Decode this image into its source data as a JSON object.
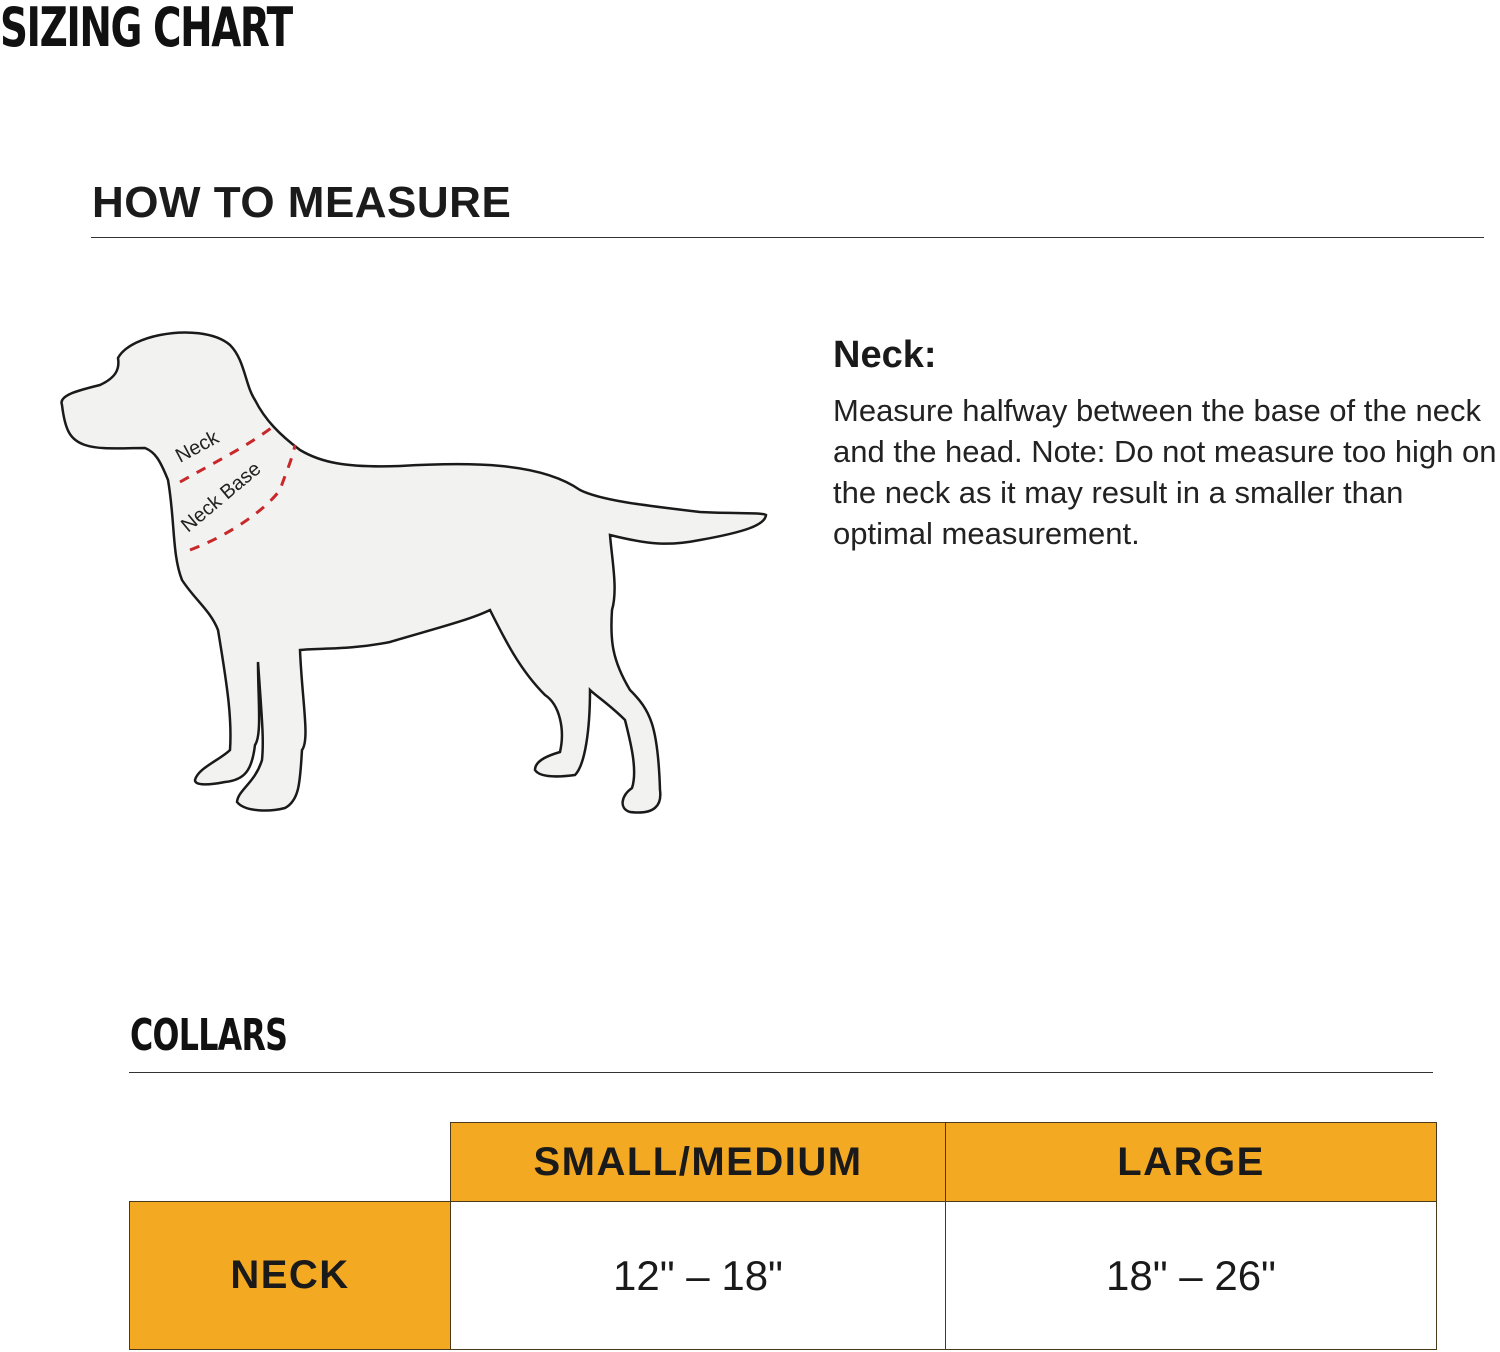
{
  "title": "SIZING CHART",
  "how_to_measure": {
    "heading": "HOW TO MEASURE",
    "diagram_labels": {
      "neck": "Neck",
      "neck_base": "Neck Base"
    },
    "neck_heading": "Neck:",
    "neck_description": "Measure halfway between the base of the neck and the head. Note: Do not measure too high on the neck as it may result in a smaller than optimal measurement."
  },
  "collars": {
    "heading": "COLLARS",
    "columns": [
      "SMALL/MEDIUM",
      "LARGE"
    ],
    "rows": [
      {
        "label": "NECK",
        "values": [
          "12\" – 18\"",
          "18\" – 26\""
        ]
      }
    ]
  },
  "colors": {
    "header_fill": "#f4a922",
    "measure_line": "#c8282a",
    "dog_fill": "#f2f2f0"
  }
}
